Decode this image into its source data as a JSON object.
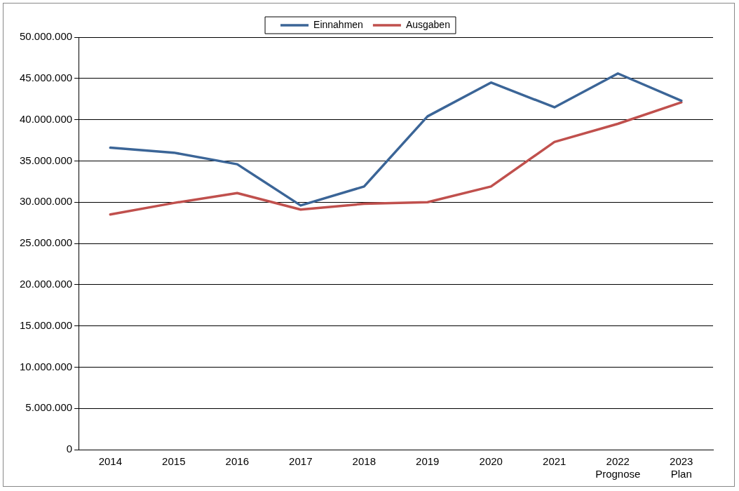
{
  "chart_data": {
    "type": "line",
    "categories": [
      "2014",
      "2015",
      "2016",
      "2017",
      "2018",
      "2019",
      "2020",
      "2021",
      "2022\nPrognose",
      "2023\nPlan"
    ],
    "series": [
      {
        "name": "Einnahmen",
        "color": "#3b6597",
        "values": [
          36600000,
          36000000,
          34600000,
          29600000,
          31900000,
          40400000,
          44500000,
          41500000,
          45600000,
          42300000
        ]
      },
      {
        "name": "Ausgaben",
        "color": "#c0504d",
        "values": [
          28500000,
          29900000,
          31100000,
          29100000,
          29800000,
          30000000,
          31900000,
          37300000,
          39500000,
          42100000
        ]
      }
    ],
    "ylim": [
      0,
      50000000
    ],
    "yticks": [
      {
        "value": 0,
        "label": "0"
      },
      {
        "value": 5000000,
        "label": "5.000.000"
      },
      {
        "value": 10000000,
        "label": "10.000.000"
      },
      {
        "value": 15000000,
        "label": "15.000.000"
      },
      {
        "value": 20000000,
        "label": "20.000.000"
      },
      {
        "value": 25000000,
        "label": "25.000.000"
      },
      {
        "value": 30000000,
        "label": "30.000.000"
      },
      {
        "value": 35000000,
        "label": "35.000.000"
      },
      {
        "value": 40000000,
        "label": "40.000.000"
      },
      {
        "value": 45000000,
        "label": "45.000.000"
      },
      {
        "value": 50000000,
        "label": "50.000.000"
      }
    ],
    "grid": "y",
    "legend": "top",
    "marker": "none",
    "line_style": "solid"
  }
}
